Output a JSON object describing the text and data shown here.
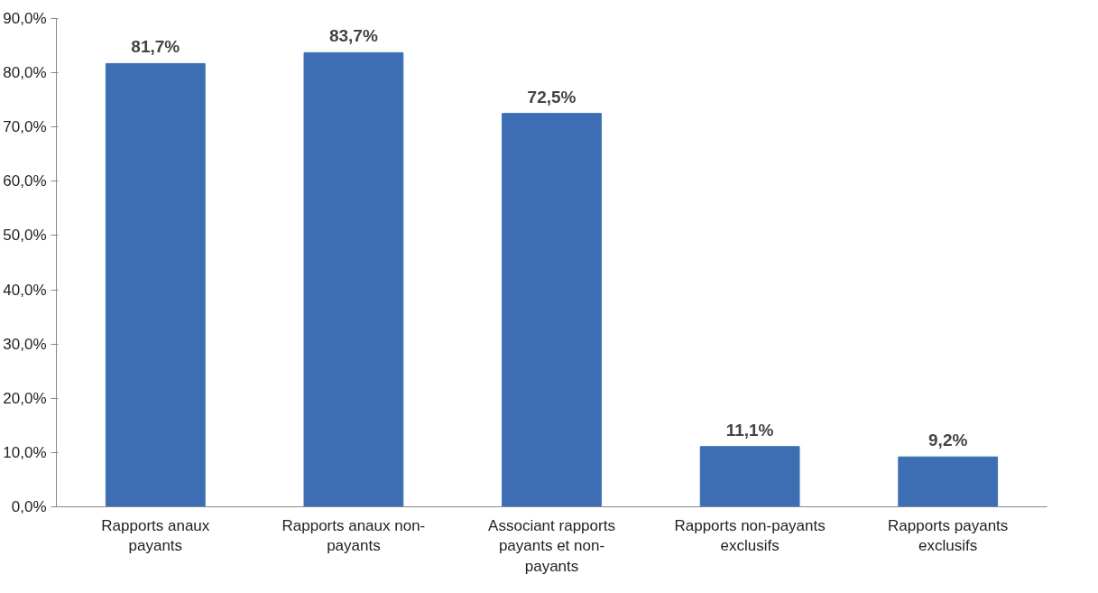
{
  "chart_data": {
    "type": "bar",
    "categories": [
      "Rapports anaux payants",
      "Rapports anaux non-payants",
      "Associant rapports payants et non-payants",
      "Rapports non-payants exclusifs",
      "Rapports payants exclusifs"
    ],
    "values": [
      81.7,
      83.7,
      72.5,
      11.1,
      9.2
    ],
    "value_labels": [
      "81,7%",
      "83,7%",
      "72,5%",
      "11,1%",
      "9,2%"
    ],
    "color": "#3d6eb4",
    "ylim": [
      0,
      90
    ],
    "yticks": [
      {
        "value": 0,
        "label": "0,0%"
      },
      {
        "value": 10,
        "label": "10,0%"
      },
      {
        "value": 20,
        "label": "20,0%"
      },
      {
        "value": 30,
        "label": "30,0%"
      },
      {
        "value": 40,
        "label": "40,0%"
      },
      {
        "value": 50,
        "label": "50,0%"
      },
      {
        "value": 60,
        "label": "60,0%"
      },
      {
        "value": 70,
        "label": "70,0%"
      },
      {
        "value": 80,
        "label": "80,0%"
      },
      {
        "value": 90,
        "label": "90,0%"
      }
    ],
    "grid": false
  }
}
